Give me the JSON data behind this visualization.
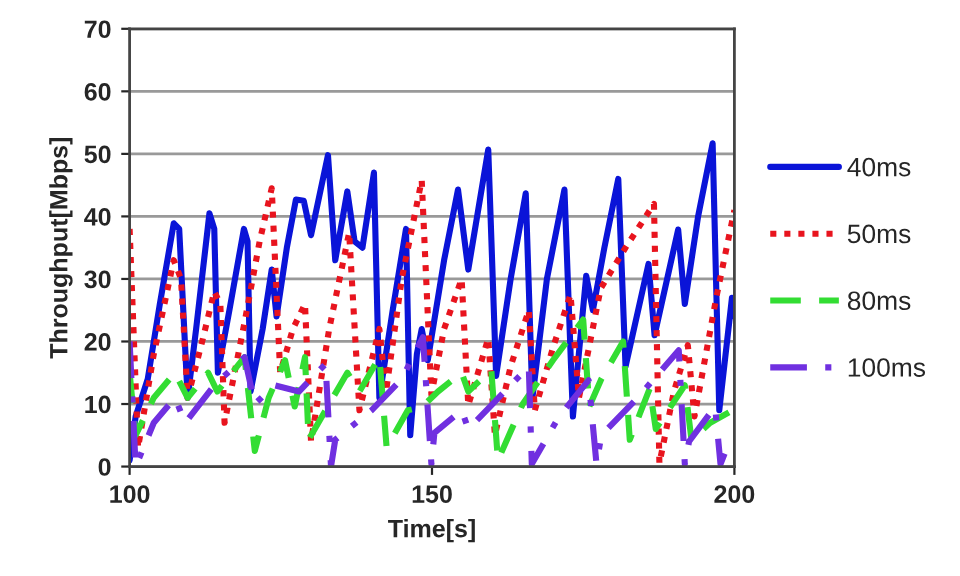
{
  "chart_data": {
    "type": "line",
    "xlabel": "Time[s]",
    "ylabel": "Throughput[Mbps]",
    "xlim": [
      100,
      200
    ],
    "xticks": [
      100,
      150,
      200
    ],
    "ylim": [
      0,
      70
    ],
    "yticks": [
      0,
      10,
      20,
      30,
      40,
      50,
      60,
      70
    ],
    "grid": "y",
    "legend": "right",
    "marker": "none",
    "series": [
      {
        "name": "40ms",
        "color": "#0a14d8",
        "line_style": "solid",
        "x": [
          100,
          101,
          103,
          105,
          107.3,
          108.2,
          109.6,
          111,
          113.2,
          114,
          114.6,
          116.5,
          118.9,
          119.5,
          120,
          122,
          123.5,
          124.3,
          126,
          127.5,
          128.8,
          130,
          132.8,
          134,
          136,
          137.2,
          138.5,
          140.4,
          141.3,
          143.5,
          145.7,
          146.4,
          147.5,
          148.3,
          149.3,
          152,
          154.3,
          156,
          159.3,
          160.6,
          163,
          165.5,
          166.6,
          169,
          171.9,
          173.3,
          175.5,
          176.6,
          178.5,
          180.8,
          182,
          185.8,
          186.8,
          190.7,
          191.8,
          194,
          196.4,
          197.5,
          199.6,
          200
        ],
        "values": [
          1,
          8,
          14,
          26,
          38.9,
          38,
          11,
          22,
          40.5,
          38,
          15,
          25,
          38,
          36,
          12,
          22,
          31.5,
          24,
          35,
          42.7,
          42.5,
          37,
          49.8,
          33,
          44,
          36,
          35,
          47,
          11,
          25,
          38,
          5,
          18,
          22,
          17,
          33,
          44.3,
          31.5,
          50.7,
          14.5,
          30,
          43.7,
          11,
          30,
          44.3,
          8,
          30.5,
          25,
          35,
          46,
          16,
          32.4,
          21,
          37.9,
          26,
          40,
          51.7,
          9,
          27,
          24
        ]
      },
      {
        "name": "50ms",
        "color": "#e8141e",
        "line_style": "dotted",
        "x": [
          100,
          101.4,
          104,
          107.3,
          108.5,
          109.6,
          112,
          114,
          115,
          115.7,
          119,
          121.5,
          123.5,
          124.9,
          127,
          129,
          130,
          133,
          136.3,
          138,
          141.3,
          142.4,
          145,
          148.3,
          149.9,
          152,
          154.9,
          156,
          159.3,
          160.4,
          163,
          166,
          167,
          170,
          172.9,
          174.3,
          177.9,
          182,
          186.7,
          187.6,
          190,
          192.3,
          193.4,
          197,
          200
        ],
        "values": [
          38,
          3,
          18,
          33,
          30,
          11,
          20,
          28,
          26,
          7,
          23,
          36,
          44.5,
          15,
          22,
          26,
          4,
          22,
          37.4,
          9,
          22,
          12,
          30,
          45.8,
          11.5,
          22,
          30,
          9.8,
          20.5,
          5,
          16,
          25,
          9,
          19,
          27.5,
          11,
          28.5,
          35,
          42,
          0.5,
          12,
          19.4,
          8,
          27,
          41
        ]
      },
      {
        "name": "80ms",
        "color": "#33dd33",
        "line_style": "dashed",
        "x": [
          100,
          101,
          104,
          107.5,
          109.6,
          113,
          114.5,
          119,
          120.7,
          123,
          125.7,
          127.3,
          129,
          129.6,
          133,
          136,
          138,
          141.3,
          142.5,
          146,
          148.3,
          151,
          154.9,
          156,
          159.8,
          160.9,
          165,
          170,
          175,
          176,
          178,
          181.6,
          182.7,
          186,
          187,
          191.8,
          192.9,
          196,
          199.7,
          200
        ],
        "values": [
          15,
          5,
          11,
          15,
          11,
          15,
          12,
          17.5,
          2.5,
          11,
          17,
          9.6,
          17.5,
          4.3,
          10,
          15,
          12,
          17.5,
          3,
          9,
          9.5,
          12,
          15,
          12,
          15.5,
          1,
          10,
          17,
          23.5,
          9.6,
          14,
          20,
          4.3,
          12.5,
          6,
          13,
          4.3,
          7,
          9,
          10
        ]
      },
      {
        "name": "100ms",
        "color": "#7030e0",
        "line_style": "dashdot",
        "x": [
          100,
          101,
          104,
          107.5,
          109.2,
          114,
          119,
          120.7,
          124,
          128,
          132.4,
          133.3,
          134,
          140,
          145,
          148.5,
          149.9,
          150.4,
          154.9,
          156,
          160,
          166,
          166.5,
          171,
          175.9,
          177.2,
          178,
          184,
          190.8,
          191.8,
          192.5,
          196.8,
          197.7,
          199,
          200
        ],
        "values": [
          20,
          0,
          7,
          11,
          7,
          13,
          17.5,
          10,
          13,
          12,
          16.4,
          0,
          4.3,
          9,
          14,
          20.7,
          0.4,
          5.4,
          9,
          6,
          10,
          16,
          0.4,
          8,
          13.8,
          0.4,
          5,
          11,
          18.6,
          0.4,
          4,
          9.6,
          0.4,
          3.6,
          4.3
        ]
      }
    ]
  }
}
